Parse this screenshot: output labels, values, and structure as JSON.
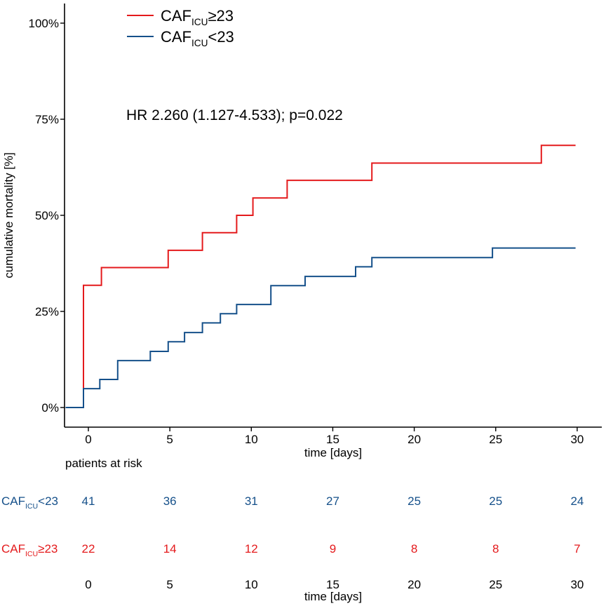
{
  "chart_data": {
    "type": "line",
    "subtype": "kaplan-meier-cumulative-incidence",
    "title": "",
    "xlabel": "time [days]",
    "ylabel": "cumulative mortality [%]",
    "xlim": [
      -1.4,
      31.5
    ],
    "ylim": [
      -0.05,
      1.05
    ],
    "x_ticks": [
      0,
      5,
      10,
      15,
      20,
      25,
      30
    ],
    "x_tick_labels": [
      "0",
      "5",
      "10",
      "15",
      "20",
      "25",
      "30"
    ],
    "y_ticks": [
      0,
      0.25,
      0.5,
      0.75,
      1.0
    ],
    "y_tick_labels": [
      "0%",
      "25%",
      "50%",
      "75%",
      "100%"
    ],
    "grid": false,
    "legend_position": "top-left",
    "annotation": "HR 2.260 (1.127-4.533); p=0.022",
    "series": [
      {
        "name_main": "CAF",
        "name_sub": "ICU",
        "name_rest": "≥23",
        "color": "#e41a1c",
        "x": [
          -1.4,
          -0.3,
          0.8,
          4.9,
          7.0,
          9.1,
          10.1,
          12.2,
          17.4,
          27.8,
          29.9
        ],
        "y": [
          0,
          0.318,
          0.364,
          0.409,
          0.455,
          0.5,
          0.545,
          0.591,
          0.636,
          0.682,
          0.682
        ]
      },
      {
        "name_main": "CAF",
        "name_sub": "ICU",
        "name_rest": "<23",
        "color": "#15508a",
        "x": [
          -1.4,
          -0.3,
          0.7,
          1.8,
          3.8,
          4.9,
          5.9,
          7.0,
          8.1,
          9.1,
          11.2,
          13.3,
          16.4,
          17.4,
          24.8,
          29.9
        ],
        "y": [
          0,
          0.049,
          0.073,
          0.122,
          0.146,
          0.171,
          0.195,
          0.22,
          0.244,
          0.268,
          0.317,
          0.341,
          0.366,
          0.39,
          0.415,
          0.415
        ]
      }
    ]
  },
  "risk_table": {
    "title": "patients at risk",
    "xlabel": "time [days]",
    "times": [
      0,
      5,
      10,
      15,
      20,
      25,
      30
    ],
    "time_labels": [
      "0",
      "5",
      "10",
      "15",
      "20",
      "25",
      "30"
    ],
    "rows": [
      {
        "label_main": "CAF",
        "label_sub": "ICU",
        "label_rest": "<23",
        "color": "#15508a",
        "counts": [
          "41",
          "36",
          "31",
          "27",
          "25",
          "25",
          "24"
        ]
      },
      {
        "label_main": "CAF",
        "label_sub": "ICU",
        "label_rest": "≥23",
        "color": "#e41a1c",
        "counts": [
          "22",
          "14",
          "12",
          "9",
          "8",
          "8",
          "7"
        ]
      }
    ]
  }
}
